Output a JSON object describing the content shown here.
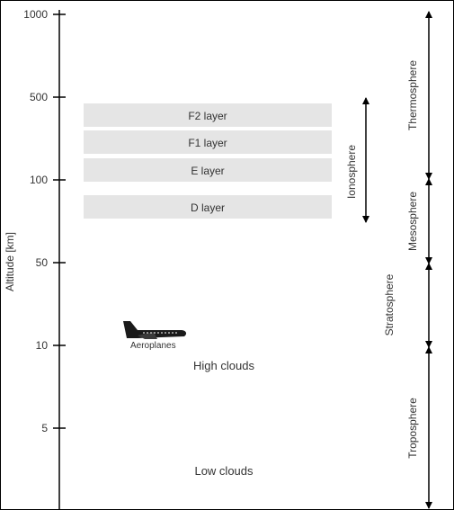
{
  "axis": {
    "label": "Altitude [km]",
    "ticks": [
      "1000",
      "500",
      "100",
      "50",
      "10",
      "5"
    ]
  },
  "layers": [
    "F2 layer",
    "F1 layer",
    "E layer",
    "D layer"
  ],
  "regions": {
    "ionosphere": "Ionosphere",
    "thermosphere": "Thermosphere",
    "mesosphere": "Mesosphere",
    "stratosphere": "Stratosphere",
    "troposphere": "Troposphere"
  },
  "labels": {
    "aeroplanes": "Aeroplanes",
    "high_clouds": "High clouds",
    "low_clouds": "Low clouds"
  },
  "colors": {
    "layer_fill": "#e5e5e5",
    "axis": "#000000",
    "text": "#333333"
  }
}
